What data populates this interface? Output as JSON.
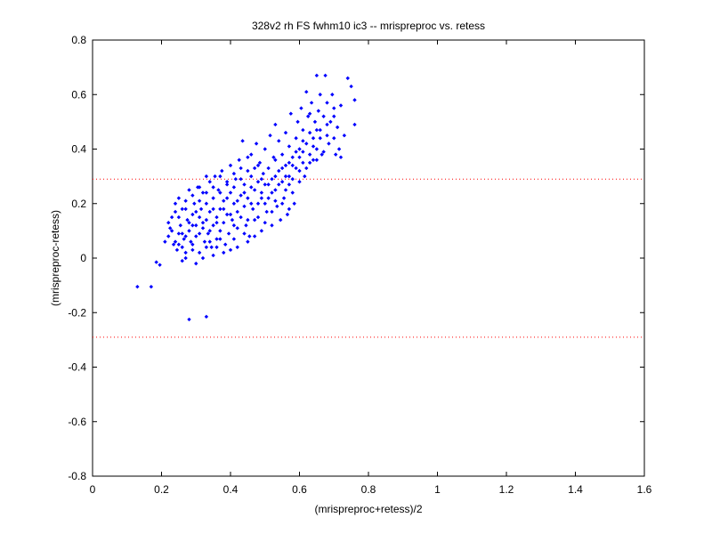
{
  "chart_data": {
    "type": "scatter",
    "title": "328v2 rh FS fwhm10 ic3 -- mrispreproc vs. retess",
    "xlabel": "(mrispreproc+retess)/2",
    "ylabel": "(mrispreproc-retess)",
    "xlim": [
      0,
      1.6
    ],
    "ylim": [
      -0.8,
      0.8
    ],
    "xticks": [
      0,
      0.2,
      0.4,
      0.6,
      0.8,
      1,
      1.2,
      1.4,
      1.6
    ],
    "xtick_labels": [
      "0",
      "0.2",
      "0.4",
      "0.6",
      "0.8",
      "1",
      "1.2",
      "1.4",
      "1.6"
    ],
    "yticks": [
      -0.8,
      -0.6,
      -0.4,
      -0.2,
      0,
      0.2,
      0.4,
      0.6,
      0.8
    ],
    "ytick_labels": [
      "-0.8",
      "-0.6",
      "-0.4",
      "-0.2",
      "0",
      "0.2",
      "0.4",
      "0.6",
      "0.8"
    ],
    "grid": false,
    "marker_color": "#0000ff",
    "reference_line_color": "#ff0000",
    "reference_lines_y": [
      0.29,
      -0.29
    ],
    "points": [
      [
        0.13,
        -0.105
      ],
      [
        0.17,
        -0.105
      ],
      [
        0.28,
        -0.225
      ],
      [
        0.33,
        -0.215
      ],
      [
        0.185,
        -0.015
      ],
      [
        0.195,
        -0.025
      ],
      [
        0.21,
        0.06
      ],
      [
        0.22,
        0.08
      ],
      [
        0.225,
        0.11
      ],
      [
        0.23,
        0.15
      ],
      [
        0.235,
        0.05
      ],
      [
        0.24,
        0.17
      ],
      [
        0.24,
        0.2
      ],
      [
        0.245,
        0.03
      ],
      [
        0.25,
        0.22
      ],
      [
        0.25,
        0.09
      ],
      [
        0.255,
        0.12
      ],
      [
        0.26,
        0.04
      ],
      [
        0.26,
        0.18
      ],
      [
        0.265,
        0.07
      ],
      [
        0.27,
        0.21
      ],
      [
        0.27,
        0.0
      ],
      [
        0.275,
        0.14
      ],
      [
        0.28,
        0.1
      ],
      [
        0.28,
        0.25
      ],
      [
        0.285,
        0.06
      ],
      [
        0.29,
        0.16
      ],
      [
        0.29,
        0.03
      ],
      [
        0.295,
        0.2
      ],
      [
        0.3,
        0.12
      ],
      [
        0.3,
        0.08
      ],
      [
        0.305,
        0.26
      ],
      [
        0.31,
        0.15
      ],
      [
        0.31,
        0.02
      ],
      [
        0.315,
        0.18
      ],
      [
        0.32,
        0.11
      ],
      [
        0.32,
        0.24
      ],
      [
        0.325,
        0.06
      ],
      [
        0.33,
        0.2
      ],
      [
        0.33,
        0.14
      ],
      [
        0.335,
        0.09
      ],
      [
        0.34,
        0.28
      ],
      [
        0.34,
        0.17
      ],
      [
        0.345,
        0.04
      ],
      [
        0.35,
        0.22
      ],
      [
        0.35,
        0.12
      ],
      [
        0.355,
        0.3
      ],
      [
        0.36,
        0.15
      ],
      [
        0.36,
        0.07
      ],
      [
        0.365,
        0.25
      ],
      [
        0.37,
        0.18
      ],
      [
        0.37,
        0.1
      ],
      [
        0.375,
        0.32
      ],
      [
        0.38,
        0.21
      ],
      [
        0.38,
        0.13
      ],
      [
        0.385,
        0.05
      ],
      [
        0.39,
        0.27
      ],
      [
        0.39,
        0.16
      ],
      [
        0.395,
        0.09
      ],
      [
        0.4,
        0.24
      ],
      [
        0.4,
        0.34
      ],
      [
        0.405,
        0.14
      ],
      [
        0.41,
        0.2
      ],
      [
        0.41,
        0.07
      ],
      [
        0.415,
        0.29
      ],
      [
        0.42,
        0.17
      ],
      [
        0.42,
        0.11
      ],
      [
        0.425,
        0.36
      ],
      [
        0.43,
        0.23
      ],
      [
        0.43,
        0.15
      ],
      [
        0.435,
        0.43
      ],
      [
        0.44,
        0.27
      ],
      [
        0.44,
        0.19
      ],
      [
        0.445,
        0.12
      ],
      [
        0.45,
        0.32
      ],
      [
        0.45,
        0.22
      ],
      [
        0.455,
        0.08
      ],
      [
        0.46,
        0.3
      ],
      [
        0.46,
        0.38
      ],
      [
        0.465,
        0.18
      ],
      [
        0.47,
        0.25
      ],
      [
        0.47,
        0.14
      ],
      [
        0.475,
        0.42
      ],
      [
        0.48,
        0.28
      ],
      [
        0.48,
        0.2
      ],
      [
        0.485,
        0.35
      ],
      [
        0.49,
        0.24
      ],
      [
        0.49,
        0.1
      ],
      [
        0.495,
        0.31
      ],
      [
        0.5,
        0.27
      ],
      [
        0.5,
        0.4
      ],
      [
        0.505,
        0.17
      ],
      [
        0.51,
        0.33
      ],
      [
        0.51,
        0.22
      ],
      [
        0.515,
        0.45
      ],
      [
        0.52,
        0.29
      ],
      [
        0.52,
        0.12
      ],
      [
        0.525,
        0.37
      ],
      [
        0.53,
        0.25
      ],
      [
        0.53,
        0.49
      ],
      [
        0.535,
        0.19
      ],
      [
        0.54,
        0.32
      ],
      [
        0.54,
        0.43
      ],
      [
        0.545,
        0.14
      ],
      [
        0.55,
        0.28
      ],
      [
        0.55,
        0.38
      ],
      [
        0.555,
        0.22
      ],
      [
        0.56,
        0.46
      ],
      [
        0.56,
        0.34
      ],
      [
        0.565,
        0.16
      ],
      [
        0.57,
        0.41
      ],
      [
        0.57,
        0.3
      ],
      [
        0.575,
        0.53
      ],
      [
        0.58,
        0.24
      ],
      [
        0.58,
        0.37
      ],
      [
        0.585,
        0.2
      ],
      [
        0.59,
        0.44
      ],
      [
        0.59,
        0.33
      ],
      [
        0.595,
        0.5
      ],
      [
        0.6,
        0.28
      ],
      [
        0.6,
        0.4
      ],
      [
        0.605,
        0.55
      ],
      [
        0.61,
        0.35
      ],
      [
        0.61,
        0.47
      ],
      [
        0.615,
        0.3
      ],
      [
        0.62,
        0.42
      ],
      [
        0.62,
        0.61
      ],
      [
        0.625,
        0.52
      ],
      [
        0.63,
        0.38
      ],
      [
        0.63,
        0.46
      ],
      [
        0.635,
        0.57
      ],
      [
        0.64,
        0.44
      ],
      [
        0.64,
        0.36
      ],
      [
        0.645,
        0.5
      ],
      [
        0.65,
        0.67
      ],
      [
        0.65,
        0.4
      ],
      [
        0.655,
        0.54
      ],
      [
        0.66,
        0.47
      ],
      [
        0.66,
        0.6
      ],
      [
        0.665,
        0.38
      ],
      [
        0.67,
        0.52
      ],
      [
        0.675,
        0.67
      ],
      [
        0.68,
        0.45
      ],
      [
        0.68,
        0.57
      ],
      [
        0.685,
        0.42
      ],
      [
        0.69,
        0.5
      ],
      [
        0.695,
        0.6
      ],
      [
        0.7,
        0.55
      ],
      [
        0.7,
        0.44
      ],
      [
        0.705,
        0.38
      ],
      [
        0.71,
        0.48
      ],
      [
        0.715,
        0.4
      ],
      [
        0.72,
        0.37
      ],
      [
        0.73,
        0.45
      ],
      [
        0.74,
        0.66
      ],
      [
        0.75,
        0.63
      ],
      [
        0.76,
        0.58
      ],
      [
        0.76,
        0.49
      ],
      [
        0.55,
        0.2
      ],
      [
        0.57,
        0.18
      ],
      [
        0.5,
        0.13
      ],
      [
        0.45,
        0.06
      ],
      [
        0.42,
        0.04
      ],
      [
        0.38,
        0.02
      ],
      [
        0.35,
        0.01
      ],
      [
        0.32,
        0.0
      ],
      [
        0.3,
        -0.02
      ],
      [
        0.27,
        0.02
      ],
      [
        0.26,
        -0.01
      ],
      [
        0.29,
        0.05
      ],
      [
        0.31,
        0.09
      ],
      [
        0.34,
        0.06
      ],
      [
        0.36,
        0.04
      ],
      [
        0.4,
        0.03
      ],
      [
        0.44,
        0.09
      ],
      [
        0.47,
        0.08
      ],
      [
        0.52,
        0.17
      ],
      [
        0.56,
        0.25
      ],
      [
        0.6,
        0.32
      ],
      [
        0.63,
        0.35
      ],
      [
        0.58,
        0.29
      ],
      [
        0.53,
        0.36
      ],
      [
        0.48,
        0.34
      ],
      [
        0.46,
        0.26
      ],
      [
        0.43,
        0.29
      ],
      [
        0.41,
        0.26
      ],
      [
        0.39,
        0.22
      ],
      [
        0.37,
        0.24
      ],
      [
        0.35,
        0.18
      ],
      [
        0.33,
        0.24
      ],
      [
        0.31,
        0.21
      ],
      [
        0.29,
        0.23
      ],
      [
        0.27,
        0.18
      ],
      [
        0.25,
        0.15
      ],
      [
        0.23,
        0.1
      ],
      [
        0.22,
        0.13
      ],
      [
        0.24,
        0.06
      ],
      [
        0.26,
        0.09
      ],
      [
        0.28,
        0.13
      ],
      [
        0.3,
        0.17
      ],
      [
        0.32,
        0.13
      ],
      [
        0.34,
        0.1
      ],
      [
        0.36,
        0.13
      ],
      [
        0.38,
        0.18
      ],
      [
        0.4,
        0.16
      ],
      [
        0.42,
        0.21
      ],
      [
        0.44,
        0.24
      ],
      [
        0.46,
        0.2
      ],
      [
        0.48,
        0.15
      ],
      [
        0.5,
        0.2
      ],
      [
        0.52,
        0.24
      ],
      [
        0.54,
        0.27
      ],
      [
        0.56,
        0.3
      ],
      [
        0.58,
        0.34
      ],
      [
        0.6,
        0.37
      ],
      [
        0.62,
        0.33
      ],
      [
        0.64,
        0.41
      ],
      [
        0.66,
        0.44
      ],
      [
        0.68,
        0.49
      ],
      [
        0.7,
        0.52
      ],
      [
        0.72,
        0.56
      ],
      [
        0.67,
        0.39
      ],
      [
        0.65,
        0.47
      ],
      [
        0.63,
        0.53
      ],
      [
        0.61,
        0.43
      ],
      [
        0.59,
        0.39
      ],
      [
        0.57,
        0.35
      ],
      [
        0.55,
        0.33
      ],
      [
        0.53,
        0.3
      ],
      [
        0.51,
        0.27
      ],
      [
        0.49,
        0.29
      ],
      [
        0.47,
        0.33
      ],
      [
        0.45,
        0.37
      ],
      [
        0.43,
        0.33
      ],
      [
        0.41,
        0.31
      ],
      [
        0.39,
        0.28
      ],
      [
        0.37,
        0.3
      ],
      [
        0.35,
        0.26
      ],
      [
        0.33,
        0.3
      ],
      [
        0.31,
        0.26
      ],
      [
        0.29,
        0.12
      ],
      [
        0.27,
        0.08
      ],
      [
        0.25,
        0.05
      ],
      [
        0.33,
        0.04
      ],
      [
        0.37,
        0.07
      ],
      [
        0.41,
        0.12
      ],
      [
        0.45,
        0.14
      ],
      [
        0.49,
        0.22
      ],
      [
        0.53,
        0.21
      ],
      [
        0.57,
        0.27
      ],
      [
        0.61,
        0.39
      ],
      [
        0.65,
        0.36
      ]
    ]
  }
}
